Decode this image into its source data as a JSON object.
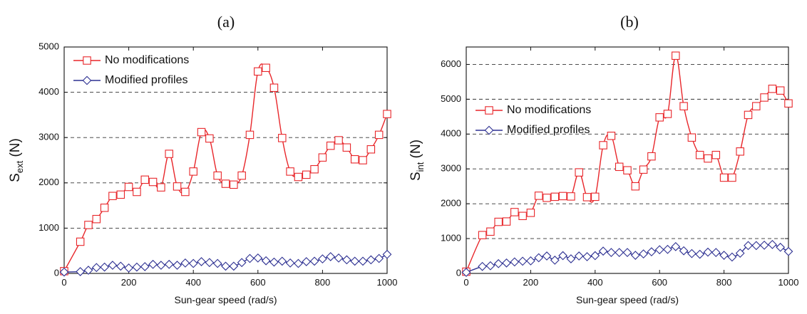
{
  "chart_data": [
    {
      "panel_label": "(a)",
      "type": "line",
      "xlabel": "Sun-gear speed (rad/s)",
      "ylabel": {
        "main": "S",
        "sub": "ext",
        "unit": " (N)"
      },
      "xlim": [
        0,
        1000
      ],
      "ylim": [
        0,
        5000
      ],
      "xticks": [
        0,
        200,
        400,
        600,
        800,
        1000
      ],
      "yticks": [
        0,
        1000,
        2000,
        3000,
        4000,
        5000
      ],
      "grid": "horizontal dashed",
      "legend_position": "top-left",
      "series": [
        {
          "name": "No modifications",
          "color": "#e8262a",
          "marker": "square",
          "x": [
            0,
            50,
            75,
            100,
            125,
            150,
            175,
            200,
            225,
            250,
            275,
            300,
            325,
            350,
            375,
            400,
            425,
            450,
            475,
            500,
            525,
            550,
            575,
            600,
            625,
            650,
            675,
            700,
            725,
            750,
            775,
            800,
            825,
            850,
            875,
            900,
            925,
            950,
            975,
            1000
          ],
          "y": [
            50,
            700,
            1070,
            1200,
            1450,
            1710,
            1740,
            1910,
            1800,
            2070,
            2020,
            1900,
            2640,
            1920,
            1800,
            2250,
            3120,
            2980,
            2160,
            1980,
            1960,
            2160,
            3060,
            4460,
            4540,
            4100,
            2990,
            2250,
            2130,
            2180,
            2300,
            2560,
            2820,
            2940,
            2780,
            2520,
            2500,
            2740,
            3060,
            3520
          ]
        },
        {
          "name": "Modified profiles",
          "color": "#2e3192",
          "marker": "diamond",
          "x": [
            0,
            50,
            75,
            100,
            125,
            150,
            175,
            200,
            225,
            250,
            275,
            300,
            325,
            350,
            375,
            400,
            425,
            450,
            475,
            500,
            525,
            550,
            575,
            600,
            625,
            650,
            675,
            700,
            725,
            750,
            775,
            800,
            825,
            850,
            875,
            900,
            925,
            950,
            975,
            1000
          ],
          "y": [
            30,
            40,
            70,
            130,
            140,
            180,
            160,
            120,
            140,
            150,
            200,
            180,
            200,
            180,
            230,
            220,
            260,
            240,
            220,
            160,
            160,
            240,
            330,
            340,
            280,
            250,
            270,
            230,
            220,
            260,
            270,
            320,
            370,
            340,
            300,
            270,
            270,
            300,
            330,
            420
          ]
        }
      ]
    },
    {
      "panel_label": "(b)",
      "type": "line",
      "xlabel": "Sun-gear speed (rad/s)",
      "ylabel": {
        "main": "S",
        "sub": "int",
        "unit": " (N)"
      },
      "xlim": [
        0,
        1000
      ],
      "ylim": [
        0,
        6500
      ],
      "xticks": [
        0,
        200,
        400,
        600,
        800,
        1000
      ],
      "yticks": [
        0,
        1000,
        2000,
        3000,
        4000,
        5000,
        6000
      ],
      "grid": "horizontal dashed",
      "legend_position": "middle-left",
      "series": [
        {
          "name": "No modifications",
          "color": "#e8262a",
          "marker": "square",
          "x": [
            0,
            50,
            75,
            100,
            125,
            150,
            175,
            200,
            225,
            250,
            275,
            300,
            325,
            350,
            375,
            400,
            425,
            450,
            475,
            500,
            525,
            550,
            575,
            600,
            625,
            650,
            675,
            700,
            725,
            750,
            775,
            800,
            825,
            850,
            875,
            900,
            925,
            950,
            975,
            1000
          ],
          "y": [
            50,
            1100,
            1200,
            1480,
            1490,
            1760,
            1650,
            1740,
            2230,
            2170,
            2200,
            2220,
            2210,
            2900,
            2190,
            2200,
            3680,
            3950,
            3060,
            2960,
            2500,
            2980,
            3360,
            4480,
            4580,
            6250,
            4800,
            3900,
            3400,
            3300,
            3400,
            2750,
            2750,
            3500,
            4550,
            4800,
            5050,
            5300,
            5250,
            4880
          ]
        },
        {
          "name": "Modified profiles",
          "color": "#2e3192",
          "marker": "diamond",
          "x": [
            0,
            50,
            75,
            100,
            125,
            150,
            175,
            200,
            225,
            250,
            275,
            300,
            325,
            350,
            375,
            400,
            425,
            450,
            475,
            500,
            525,
            550,
            575,
            600,
            625,
            650,
            675,
            700,
            725,
            750,
            775,
            800,
            825,
            850,
            875,
            900,
            925,
            950,
            975,
            1000
          ],
          "y": [
            30,
            200,
            220,
            280,
            300,
            330,
            350,
            360,
            450,
            500,
            380,
            510,
            420,
            500,
            480,
            510,
            640,
            600,
            600,
            600,
            520,
            560,
            620,
            680,
            690,
            770,
            650,
            570,
            550,
            610,
            600,
            520,
            470,
            580,
            800,
            800,
            810,
            830,
            750,
            630
          ]
        }
      ]
    }
  ]
}
